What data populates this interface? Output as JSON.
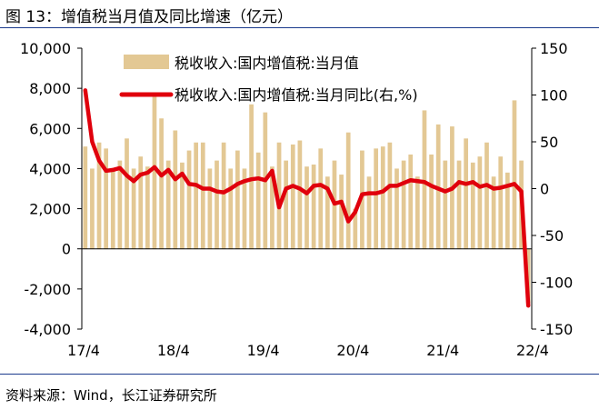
{
  "title": "图 13：增值税当月值及同比增速（亿元）",
  "source": "资料来源：Wind，长江证券研究所",
  "chart_data": {
    "type": "bar+line",
    "title": "图 13：增值税当月值及同比增速（亿元）",
    "x_tick_labels": [
      "17/4",
      "18/4",
      "19/4",
      "20/4",
      "21/4",
      "22/4"
    ],
    "y_left": {
      "ylim": [
        -4000,
        10000
      ],
      "ticks": [
        -4000,
        -2000,
        0,
        2000,
        4000,
        6000,
        8000,
        10000
      ],
      "tick_labels": [
        "-4,000",
        "-2,000",
        "0",
        "2,000",
        "4,000",
        "6,000",
        "8,000",
        "10,000"
      ]
    },
    "y_right": {
      "ylim": [
        -150,
        150
      ],
      "ticks": [
        -150,
        -100,
        -50,
        0,
        50,
        100,
        150
      ],
      "tick_labels": [
        "-150",
        "-100",
        "-50",
        "0",
        "50",
        "100",
        "150"
      ]
    },
    "legend_placement": "top",
    "colors": {
      "bar": "#e3c894",
      "line": "#e0000c"
    },
    "series": [
      {
        "name": "税收收入:国内增值税:当月值",
        "type": "bar",
        "axis": "left",
        "values": [
          5100,
          4000,
          5300,
          5000,
          4000,
          4400,
          5500,
          4000,
          4600,
          4100,
          7600,
          6500,
          4400,
          5900,
          4300,
          4900,
          5300,
          5300,
          4000,
          4400,
          5300,
          4000,
          4900,
          4000,
          7200,
          4800,
          6800,
          4100,
          5300,
          4400,
          5200,
          5400,
          4100,
          4200,
          5000,
          3600,
          4400,
          3700,
          5800,
          2000,
          4900,
          3600,
          5000,
          5100,
          5300,
          4000,
          4400,
          4700,
          3600,
          6900,
          4700,
          6200,
          4400,
          6100,
          4400,
          5500,
          4300,
          4600,
          5300,
          3600,
          4600,
          3800,
          7400,
          4400,
          -2700
        ]
      },
      {
        "name": "税收收入:国内增值税:当月同比(右,%)",
        "type": "line",
        "axis": "right",
        "values": [
          105,
          50,
          30,
          19,
          20,
          22,
          14,
          8,
          15,
          17,
          23,
          14,
          20,
          10,
          16,
          5,
          4,
          0,
          0,
          -3,
          -4,
          0,
          5,
          8,
          10,
          11,
          9,
          19,
          -20,
          0,
          3,
          0,
          -5,
          3,
          4,
          0,
          -16,
          -14,
          -35,
          -25,
          -6,
          -5,
          -5,
          -3,
          3,
          3,
          6,
          9,
          8,
          7,
          3,
          0,
          -3,
          0,
          7,
          5,
          7,
          2,
          4,
          0,
          1,
          3,
          5,
          -3,
          -125
        ]
      }
    ]
  }
}
